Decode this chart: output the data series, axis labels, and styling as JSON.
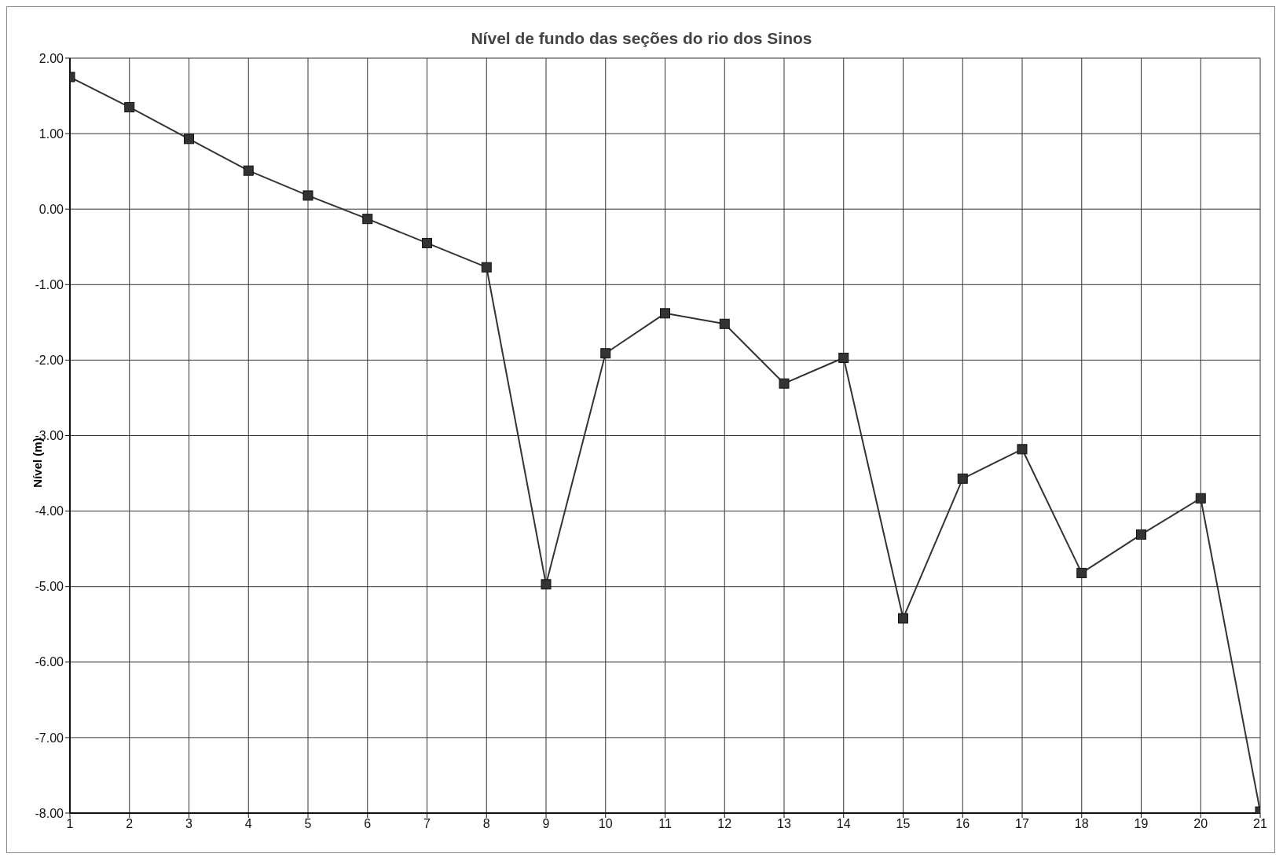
{
  "chart_data": {
    "type": "line",
    "title": "Nível de fundo das seções do rio dos Sinos",
    "ylabel": "Nível (m)",
    "x": [
      1,
      2,
      3,
      4,
      5,
      6,
      7,
      8,
      9,
      10,
      11,
      12,
      13,
      14,
      15,
      16,
      17,
      18,
      19,
      20,
      21
    ],
    "series": [
      {
        "color": "#333333",
        "values": [
          1.75,
          1.35,
          0.93,
          0.51,
          0.18,
          -0.13,
          -0.45,
          -0.77,
          -4.97,
          -1.91,
          -1.38,
          -1.52,
          -2.31,
          -1.97,
          -5.42,
          -3.57,
          -3.18,
          -4.82,
          -4.31,
          -3.83,
          -7.98
        ]
      }
    ],
    "xlim": [
      1,
      21
    ],
    "xticks": [
      1,
      2,
      3,
      4,
      5,
      6,
      7,
      8,
      9,
      10,
      11,
      12,
      13,
      14,
      15,
      16,
      17,
      18,
      19,
      20,
      21
    ],
    "ylim": [
      -8,
      2
    ],
    "yticks": [
      {
        "value": -8,
        "label": "-8.00"
      },
      {
        "value": -7,
        "label": "-7.00"
      },
      {
        "value": -6,
        "label": "-6.00"
      },
      {
        "value": -5,
        "label": "-5.00"
      },
      {
        "value": -4,
        "label": "-4.00"
      },
      {
        "value": -3,
        "label": "-3.00"
      },
      {
        "value": -2,
        "label": "-2.00"
      },
      {
        "value": -1,
        "label": "-1.00"
      },
      {
        "value": 0,
        "label": "0.00"
      },
      {
        "value": 1,
        "label": "1.00"
      },
      {
        "value": 2,
        "label": "2.00"
      }
    ],
    "grid": true,
    "marker": "square"
  }
}
